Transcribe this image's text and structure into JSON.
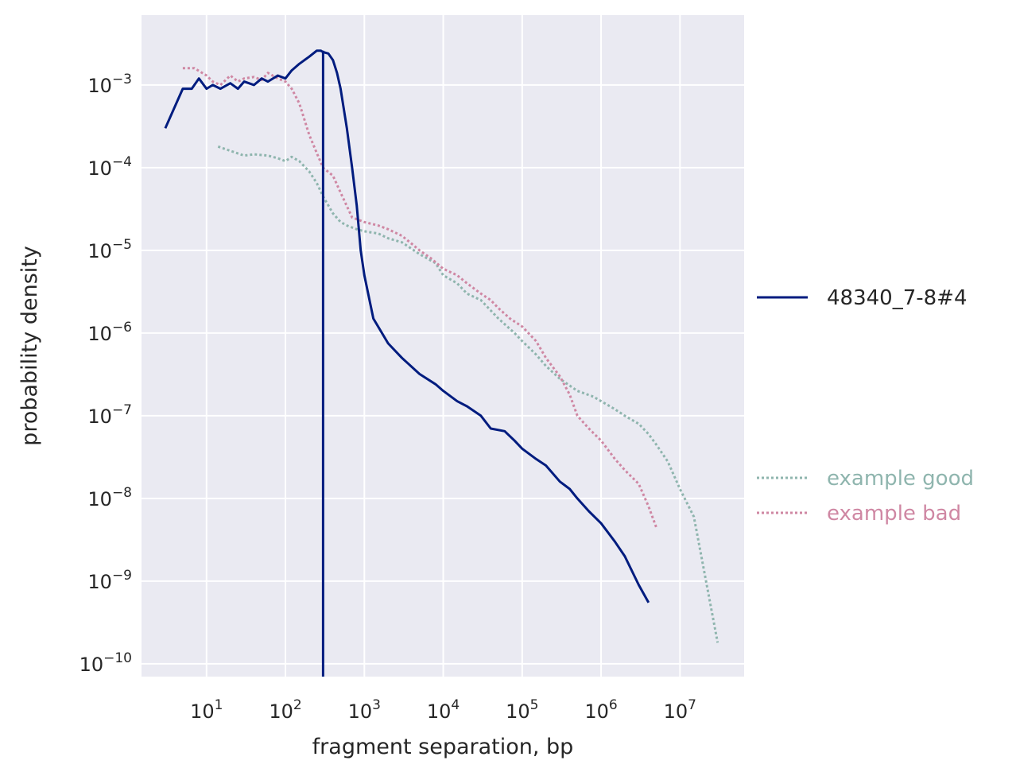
{
  "chart_data": {
    "type": "line",
    "xlabel": "fragment separation, bp",
    "ylabel": "probability density",
    "xscale": "log",
    "yscale": "log",
    "xlim": [
      1.5,
      65000000
    ],
    "ylim": [
      7e-11,
      0.007
    ],
    "grid": true,
    "xticks": [
      {
        "value": 10,
        "base": "10",
        "exp": "1"
      },
      {
        "value": 100,
        "base": "10",
        "exp": "2"
      },
      {
        "value": 1000,
        "base": "10",
        "exp": "3"
      },
      {
        "value": 10000,
        "base": "10",
        "exp": "4"
      },
      {
        "value": 100000,
        "base": "10",
        "exp": "5"
      },
      {
        "value": 1000000,
        "base": "10",
        "exp": "6"
      },
      {
        "value": 10000000,
        "base": "10",
        "exp": "7"
      }
    ],
    "yticks": [
      {
        "value": 0.001,
        "base": "10",
        "exp": "−3"
      },
      {
        "value": 0.0001,
        "base": "10",
        "exp": "−4"
      },
      {
        "value": 1e-05,
        "base": "10",
        "exp": "−5"
      },
      {
        "value": 1e-06,
        "base": "10",
        "exp": "−6"
      },
      {
        "value": 1e-07,
        "base": "10",
        "exp": "−7"
      },
      {
        "value": 1e-08,
        "base": "10",
        "exp": "−8"
      },
      {
        "value": 1e-09,
        "base": "10",
        "exp": "−9"
      },
      {
        "value": 1e-10,
        "base": "10",
        "exp": "−10"
      }
    ],
    "vline": {
      "x": 300,
      "color": "#001c7f"
    },
    "legend": [
      {
        "label": "48340_7-8#4",
        "color": "#001c7f",
        "style": "solid",
        "position": "right-middle"
      },
      {
        "label": "example good",
        "color": "#8fb5ae",
        "style": "dotted",
        "position": "right-lower"
      },
      {
        "label": "example bad",
        "color": "#cf87a3",
        "style": "dotted",
        "position": "right-lower"
      }
    ],
    "series": [
      {
        "name": "48340_7-8#4",
        "color": "#001c7f",
        "style": "solid",
        "x": [
          3,
          5,
          6.5,
          8,
          10,
          12,
          15,
          20,
          25,
          30,
          40,
          50,
          60,
          80,
          100,
          120,
          150,
          200,
          250,
          280,
          300,
          350,
          400,
          450,
          500,
          600,
          700,
          800,
          900,
          1000,
          1300,
          2000,
          3000,
          5000,
          8000,
          10000,
          15000,
          20000,
          30000,
          40000,
          60000,
          80000,
          100000,
          150000,
          200000,
          300000,
          400000,
          500000,
          700000,
          1000000,
          1500000,
          2000000,
          3000000,
          4000000
        ],
        "y": [
          0.0003,
          0.0009,
          0.0009,
          0.0012,
          0.0009,
          0.001,
          0.0009,
          0.00105,
          0.0009,
          0.0011,
          0.001,
          0.0012,
          0.0011,
          0.0013,
          0.0012,
          0.0015,
          0.0018,
          0.0022,
          0.0026,
          0.0026,
          0.0025,
          0.0024,
          0.002,
          0.0014,
          0.0009,
          0.0003,
          0.0001,
          3.5e-05,
          1e-05,
          5e-06,
          1.5e-06,
          7.5e-07,
          5e-07,
          3.2e-07,
          2.4e-07,
          2e-07,
          1.5e-07,
          1.3e-07,
          1e-07,
          7e-08,
          6.5e-08,
          5e-08,
          4e-08,
          3e-08,
          2.5e-08,
          1.6e-08,
          1.3e-08,
          1e-08,
          7e-09,
          5e-09,
          3e-09,
          2e-09,
          9e-10,
          5.5e-10
        ]
      },
      {
        "name": "example good",
        "color": "#8fb5ae",
        "style": "dotted",
        "x": [
          14,
          20,
          30,
          40,
          60,
          80,
          100,
          120,
          150,
          200,
          250,
          300,
          400,
          500,
          600,
          800,
          1000,
          1500,
          2000,
          3000,
          5000,
          8000,
          10000,
          15000,
          20000,
          30000,
          50000,
          80000,
          100000,
          150000,
          200000,
          300000,
          500000,
          800000,
          1000000,
          1500000,
          2000000,
          3000000,
          4000000,
          5000000,
          7000000,
          10000000,
          15000000,
          30000000
        ],
        "y": [
          0.00018,
          0.00016,
          0.00014,
          0.000145,
          0.00014,
          0.00013,
          0.00012,
          0.000135,
          0.00012,
          9e-05,
          6.5e-05,
          4.5e-05,
          2.8e-05,
          2.2e-05,
          2e-05,
          1.8e-05,
          1.7e-05,
          1.6e-05,
          1.4e-05,
          1.25e-05,
          9e-06,
          7e-06,
          5e-06,
          4e-06,
          3e-06,
          2.5e-06,
          1.5e-06,
          1e-06,
          8e-07,
          5.5e-07,
          4e-07,
          2.8e-07,
          2e-07,
          1.7e-07,
          1.5e-07,
          1.2e-07,
          1e-07,
          8e-08,
          6e-08,
          4.5e-08,
          2.8e-08,
          1.3e-08,
          6e-09,
          1.8e-10
        ]
      },
      {
        "name": "example bad",
        "color": "#cf87a3",
        "style": "dotted",
        "x": [
          5,
          7,
          10,
          12,
          15,
          20,
          25,
          30,
          40,
          50,
          60,
          80,
          100,
          120,
          150,
          200,
          250,
          300,
          400,
          500,
          700,
          1000,
          1500,
          2000,
          3000,
          4000,
          5000,
          7000,
          10000,
          15000,
          20000,
          30000,
          40000,
          50000,
          70000,
          100000,
          150000,
          200000,
          300000,
          400000,
          500000,
          700000,
          1000000,
          1500000,
          2000000,
          3000000,
          4000000,
          5000000
        ],
        "y": [
          0.0016,
          0.0016,
          0.0013,
          0.0011,
          0.001,
          0.0013,
          0.0011,
          0.0012,
          0.00125,
          0.00115,
          0.0014,
          0.0012,
          0.0011,
          0.0009,
          0.0006,
          0.00025,
          0.00015,
          0.0001,
          8e-05,
          5e-05,
          2.5e-05,
          2.2e-05,
          2e-05,
          1.8e-05,
          1.5e-05,
          1.2e-05,
          1e-05,
          8e-06,
          6e-06,
          5e-06,
          4e-06,
          3e-06,
          2.5e-06,
          2e-06,
          1.5e-06,
          1.2e-06,
          8e-07,
          5e-07,
          3e-07,
          1.8e-07,
          1e-07,
          7e-08,
          5e-08,
          3e-08,
          2.2e-08,
          1.5e-08,
          8e-09,
          4.5e-09
        ]
      }
    ]
  }
}
